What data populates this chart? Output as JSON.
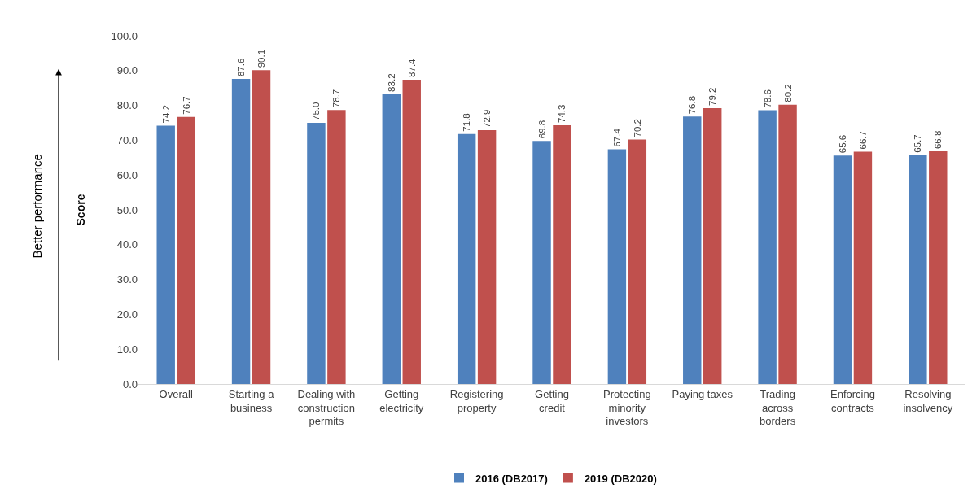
{
  "chart_data": {
    "type": "bar",
    "categories": [
      "Overall",
      "Starting a business",
      "Dealing with construction permits",
      "Getting electricity",
      "Registering property",
      "Getting credit",
      "Protecting minority investors",
      "Paying taxes",
      "Trading across borders",
      "Enforcing contracts",
      "Resolving insolvency"
    ],
    "series": [
      {
        "name": "2016 (DB2017)",
        "color": "#4f81bd",
        "values": [
          74.2,
          87.6,
          75.0,
          83.2,
          71.8,
          69.8,
          67.4,
          76.8,
          78.6,
          65.6,
          65.7
        ],
        "value_labels": [
          "74.2",
          "87.6",
          "75.0",
          "83.2",
          "71.8",
          "69.8",
          "67.4",
          "76.8",
          "78.6",
          "65.6",
          "65.7"
        ]
      },
      {
        "name": "2019 (DB2020)",
        "color": "#c0504d",
        "values": [
          76.7,
          90.1,
          78.7,
          87.4,
          72.9,
          74.3,
          70.2,
          79.2,
          80.2,
          66.7,
          66.8
        ],
        "value_labels": [
          "76.7",
          "90.1",
          "78.7",
          "87.4",
          "72.9",
          "74.3",
          "70.2",
          "79.2",
          "80.2",
          "66.7",
          "66.8"
        ]
      }
    ],
    "ylabel": "Score",
    "ylim": [
      0,
      100
    ],
    "yticks": [
      {
        "value": 0,
        "label": "0.0"
      },
      {
        "value": 10,
        "label": "10.0"
      },
      {
        "value": 20,
        "label": "20.0"
      },
      {
        "value": 30,
        "label": "30.0"
      },
      {
        "value": 40,
        "label": "40.0"
      },
      {
        "value": 50,
        "label": "50.0"
      },
      {
        "value": 60,
        "label": "60.0"
      },
      {
        "value": 70,
        "label": "70.0"
      },
      {
        "value": 80,
        "label": "80.0"
      },
      {
        "value": 90,
        "label": "90.0"
      },
      {
        "value": 100,
        "label": "100.0"
      }
    ],
    "annotations": [
      "Better performance"
    ],
    "grid": false,
    "legend": "bottom"
  }
}
